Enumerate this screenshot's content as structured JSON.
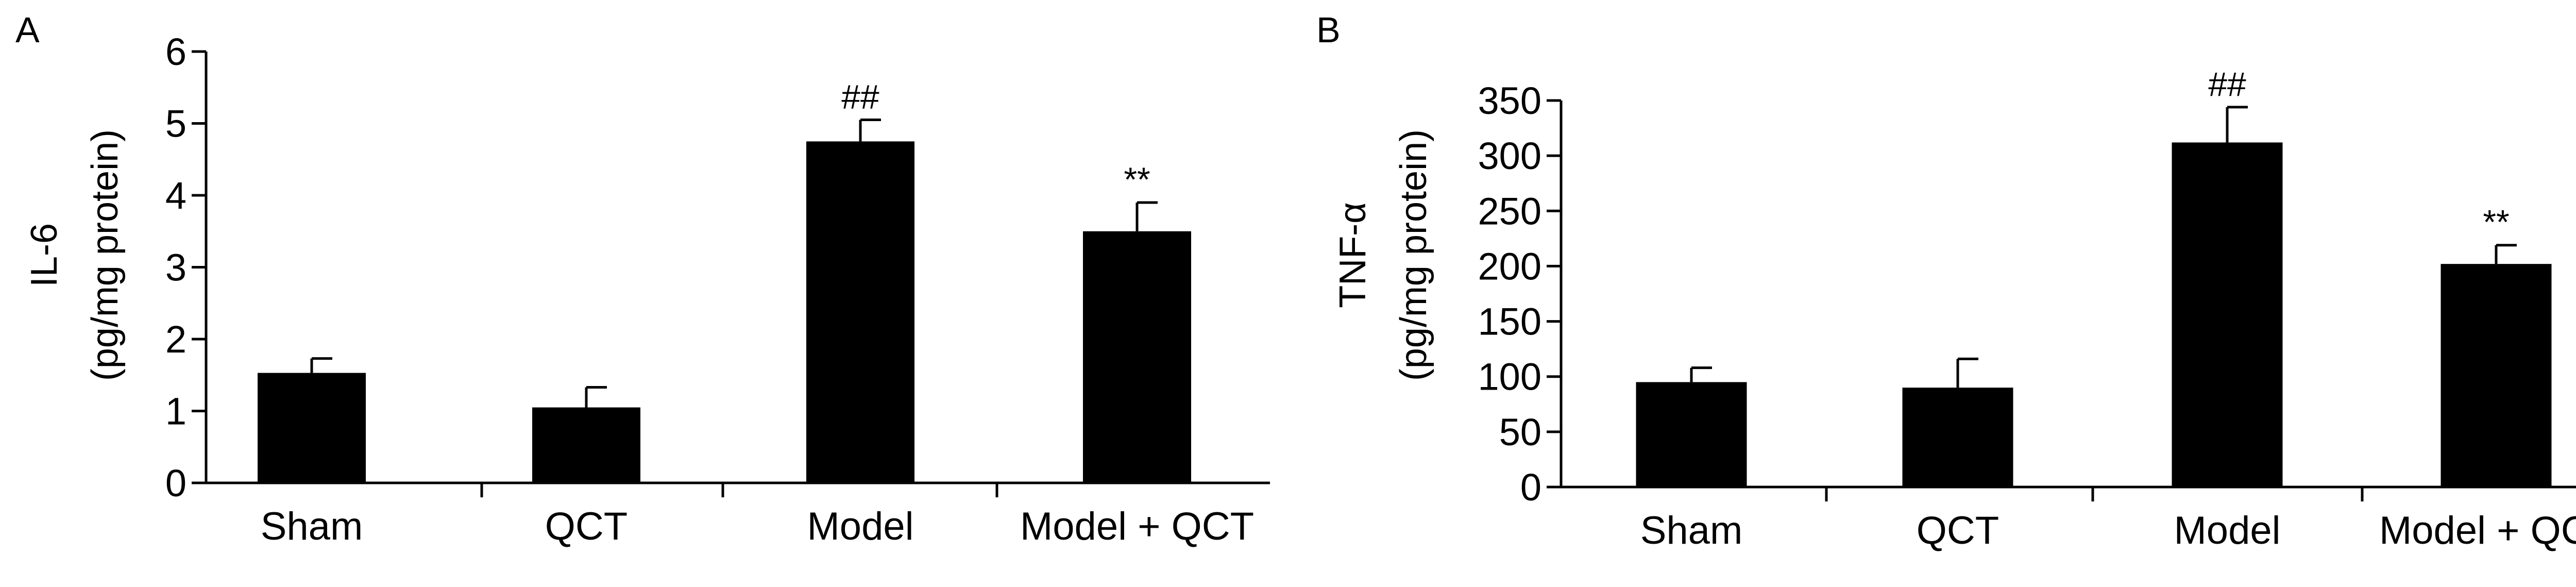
{
  "colors": {
    "bar": "#000000",
    "axis": "#000000",
    "background": "#ffffff"
  },
  "chart_data": [
    {
      "type": "bar",
      "panel_label": "A",
      "categories": [
        "Sham",
        "QCT",
        "Model",
        "Model + QCT"
      ],
      "values": [
        1.53,
        1.05,
        4.75,
        3.5
      ],
      "errors": [
        0.2,
        0.28,
        0.3,
        0.4
      ],
      "annotations": [
        "",
        "",
        "##",
        "**"
      ],
      "ylabel_line1": "IL-6",
      "ylabel_line2": "(pg/mg protein)",
      "ylim": [
        0,
        6
      ],
      "yticks": [
        0,
        1,
        2,
        3,
        4,
        5,
        6
      ],
      "grid": false
    },
    {
      "type": "bar",
      "panel_label": "B",
      "categories": [
        "Sham",
        "QCT",
        "Model",
        "Model + QCT"
      ],
      "values": [
        95,
        90,
        312,
        202
      ],
      "errors": [
        13,
        26,
        32,
        17
      ],
      "annotations": [
        "",
        "",
        "##",
        "**"
      ],
      "ylabel_line1": "TNF-α",
      "ylabel_line2": "(pg/mg protein)",
      "ylim": [
        0,
        350
      ],
      "yticks": [
        0,
        50,
        100,
        150,
        200,
        250,
        300,
        350
      ],
      "grid": false
    }
  ]
}
